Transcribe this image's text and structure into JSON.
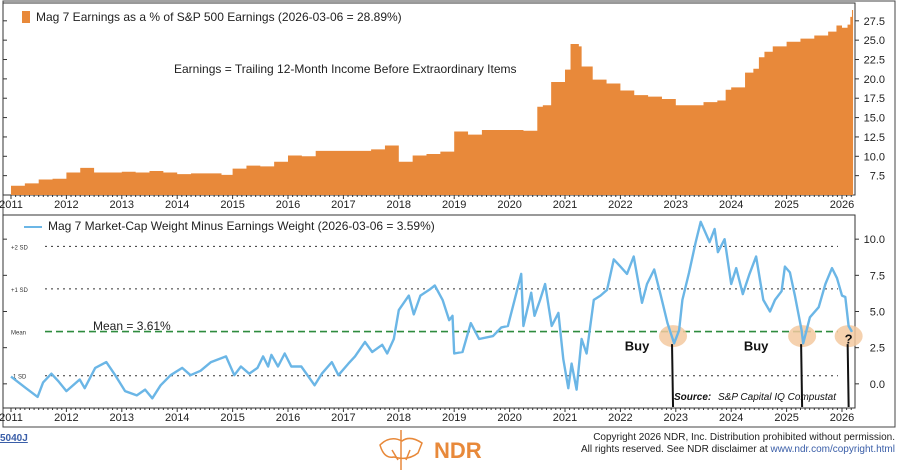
{
  "chart_data": [
    {
      "type": "area",
      "title": "Mag 7 Earnings as a % of S&P 500 Earnings (2026-03-06 = 28.89%)",
      "annotation": "Earnings = Trailing 12-Month Income Before Extraordinary Items",
      "color": "#e8893a",
      "xlim": [
        2011,
        2026.3
      ],
      "ylim": [
        5,
        29.8
      ],
      "xticks": [
        "2011",
        "2012",
        "2013",
        "2014",
        "2015",
        "2016",
        "2017",
        "2018",
        "2019",
        "2020",
        "2021",
        "2022",
        "2023",
        "2024",
        "2025",
        "2026"
      ],
      "yticks": [
        "7.5",
        "10.0",
        "12.5",
        "15.0",
        "17.5",
        "20.0",
        "22.5",
        "25.0",
        "27.5"
      ],
      "points": [
        [
          2011.0,
          6.2
        ],
        [
          2011.25,
          6.5
        ],
        [
          2011.5,
          7.0
        ],
        [
          2011.75,
          7.1
        ],
        [
          2012.0,
          7.9
        ],
        [
          2012.25,
          8.5
        ],
        [
          2012.5,
          7.9
        ],
        [
          2012.75,
          7.9
        ],
        [
          2013.0,
          8.0
        ],
        [
          2013.25,
          7.9
        ],
        [
          2013.5,
          8.1
        ],
        [
          2013.75,
          7.9
        ],
        [
          2014.0,
          7.7
        ],
        [
          2014.25,
          7.8
        ],
        [
          2014.8,
          7.6
        ],
        [
          2015.0,
          8.4
        ],
        [
          2015.25,
          8.8
        ],
        [
          2015.5,
          8.7
        ],
        [
          2015.75,
          9.3
        ],
        [
          2016.0,
          10.1
        ],
        [
          2016.25,
          10.0
        ],
        [
          2016.5,
          10.7
        ],
        [
          2017.5,
          10.9
        ],
        [
          2017.75,
          11.4
        ],
        [
          2018.0,
          9.3
        ],
        [
          2018.25,
          10.1
        ],
        [
          2018.5,
          10.3
        ],
        [
          2018.75,
          10.6
        ],
        [
          2019.0,
          13.2
        ],
        [
          2019.25,
          12.8
        ],
        [
          2019.5,
          13.4
        ],
        [
          2020.25,
          13.3
        ],
        [
          2020.5,
          16.4
        ],
        [
          2020.6,
          16.6
        ],
        [
          2020.75,
          19.6
        ],
        [
          2021.0,
          21.2
        ],
        [
          2021.1,
          24.5
        ],
        [
          2021.25,
          24.2
        ],
        [
          2021.3,
          21.6
        ],
        [
          2021.5,
          19.9
        ],
        [
          2021.75,
          19.4
        ],
        [
          2022.0,
          18.5
        ],
        [
          2022.25,
          17.9
        ],
        [
          2022.5,
          17.7
        ],
        [
          2022.75,
          17.4
        ],
        [
          2023.0,
          16.6
        ],
        [
          2023.5,
          17.0
        ],
        [
          2023.75,
          17.2
        ],
        [
          2023.9,
          18.6
        ],
        [
          2024.0,
          18.9
        ],
        [
          2024.25,
          20.8
        ],
        [
          2024.4,
          21.3
        ],
        [
          2024.5,
          22.8
        ],
        [
          2024.6,
          23.5
        ],
        [
          2024.75,
          24.2
        ],
        [
          2025.0,
          24.8
        ],
        [
          2025.25,
          25.2
        ],
        [
          2025.5,
          25.6
        ],
        [
          2025.75,
          26.1
        ],
        [
          2025.9,
          26.9
        ],
        [
          2026.0,
          26.6
        ],
        [
          2026.1,
          27.0
        ],
        [
          2026.15,
          28.0
        ],
        [
          2026.18,
          28.89
        ],
        [
          2026.2,
          28.89
        ]
      ]
    },
    {
      "type": "line",
      "title": "Mag 7 Market-Cap Weight Minus Earnings Weight (2026-03-06 = 3.59%)",
      "color": "#6bb6e6",
      "xlim": [
        2011,
        2026.3
      ],
      "ylim": [
        -1.67,
        11.67
      ],
      "xticks": [
        "2011",
        "2012",
        "2013",
        "2014",
        "2015",
        "2016",
        "2017",
        "2018",
        "2019",
        "2020",
        "2021",
        "2022",
        "2023",
        "2024",
        "2025",
        "2026"
      ],
      "yticks": [
        "0.0",
        "2.5",
        "5.0",
        "7.5",
        "10.0"
      ],
      "reference_lines": [
        {
          "label": "+2 SD",
          "value": 9.5
        },
        {
          "label": "+1 SD",
          "value": 6.56
        },
        {
          "label": "Mean",
          "value": 3.61
        },
        {
          "label": "-1 SD",
          "value": 0.56
        }
      ],
      "mean_label": "Mean = 3.61%",
      "annotations": [
        {
          "text": "Buy",
          "x": 2022.3,
          "y": 2.3
        },
        {
          "text": "Buy",
          "x": 2024.45,
          "y": 2.3
        },
        {
          "text": "?",
          "x": 2026.12,
          "y": 2.8
        }
      ],
      "highlights": [
        {
          "x": 2022.95,
          "y": 3.3
        },
        {
          "x": 2025.28,
          "y": 3.3
        },
        {
          "x": 2026.12,
          "y": 3.3
        }
      ],
      "source_label": "Source:",
      "source": "S&P Capital IQ Compustat",
      "points": [
        [
          2011.0,
          0.5
        ],
        [
          2011.27,
          -0.3
        ],
        [
          2011.48,
          -0.9
        ],
        [
          2011.58,
          0.1
        ],
        [
          2011.73,
          0.7
        ],
        [
          2011.85,
          0.2
        ],
        [
          2012.0,
          -0.5
        ],
        [
          2012.24,
          0.3
        ],
        [
          2012.33,
          -0.3
        ],
        [
          2012.52,
          1.1
        ],
        [
          2012.72,
          1.5
        ],
        [
          2012.88,
          0.6
        ],
        [
          2013.06,
          -0.5
        ],
        [
          2013.27,
          -0.8
        ],
        [
          2013.42,
          -0.4
        ],
        [
          2013.55,
          -1.0
        ],
        [
          2013.7,
          -0.1
        ],
        [
          2013.88,
          0.6
        ],
        [
          2014.09,
          1.1
        ],
        [
          2014.24,
          0.6
        ],
        [
          2014.42,
          0.9
        ],
        [
          2014.61,
          1.5
        ],
        [
          2014.88,
          1.9
        ],
        [
          2015.03,
          0.6
        ],
        [
          2015.15,
          1.2
        ],
        [
          2015.3,
          0.7
        ],
        [
          2015.45,
          1.1
        ],
        [
          2015.55,
          1.9
        ],
        [
          2015.64,
          1.2
        ],
        [
          2015.7,
          2.0
        ],
        [
          2015.82,
          1.2
        ],
        [
          2015.94,
          2.1
        ],
        [
          2016.06,
          1.2
        ],
        [
          2016.24,
          1.2
        ],
        [
          2016.48,
          -0.1
        ],
        [
          2016.61,
          0.7
        ],
        [
          2016.79,
          1.5
        ],
        [
          2016.91,
          0.6
        ],
        [
          2017.09,
          1.4
        ],
        [
          2017.21,
          1.9
        ],
        [
          2017.39,
          2.9
        ],
        [
          2017.52,
          2.2
        ],
        [
          2017.7,
          2.7
        ],
        [
          2017.79,
          2.1
        ],
        [
          2017.91,
          3.1
        ],
        [
          2018.0,
          5.1
        ],
        [
          2018.18,
          6.1
        ],
        [
          2018.27,
          4.8
        ],
        [
          2018.39,
          6.1
        ],
        [
          2018.55,
          6.5
        ],
        [
          2018.65,
          6.8
        ],
        [
          2018.79,
          5.8
        ],
        [
          2018.91,
          4.4
        ],
        [
          2018.97,
          4.7
        ],
        [
          2019.0,
          2.1
        ],
        [
          2019.15,
          2.2
        ],
        [
          2019.3,
          4.2
        ],
        [
          2019.45,
          3.1
        ],
        [
          2019.7,
          3.3
        ],
        [
          2019.85,
          3.9
        ],
        [
          2019.97,
          4.0
        ],
        [
          2020.09,
          5.8
        ],
        [
          2020.21,
          7.6
        ],
        [
          2020.25,
          4.0
        ],
        [
          2020.39,
          6.3
        ],
        [
          2020.45,
          4.7
        ],
        [
          2020.55,
          5.8
        ],
        [
          2020.64,
          6.9
        ],
        [
          2020.76,
          4.0
        ],
        [
          2020.88,
          4.9
        ],
        [
          2020.97,
          1.7
        ],
        [
          2021.06,
          -0.3
        ],
        [
          2021.12,
          1.4
        ],
        [
          2021.21,
          -0.4
        ],
        [
          2021.3,
          3.1
        ],
        [
          2021.39,
          2.1
        ],
        [
          2021.52,
          5.8
        ],
        [
          2021.64,
          6.1
        ],
        [
          2021.76,
          6.5
        ],
        [
          2021.88,
          8.6
        ],
        [
          2022.0,
          8.1
        ],
        [
          2022.12,
          7.6
        ],
        [
          2022.24,
          8.8
        ],
        [
          2022.39,
          5.6
        ],
        [
          2022.48,
          6.9
        ],
        [
          2022.61,
          7.9
        ],
        [
          2022.73,
          6.1
        ],
        [
          2022.85,
          4.2
        ],
        [
          2022.97,
          2.8
        ],
        [
          2023.06,
          3.7
        ],
        [
          2023.12,
          5.8
        ],
        [
          2023.24,
          7.7
        ],
        [
          2023.36,
          9.8
        ],
        [
          2023.45,
          11.2
        ],
        [
          2023.61,
          9.8
        ],
        [
          2023.7,
          10.7
        ],
        [
          2023.76,
          9.1
        ],
        [
          2023.88,
          10.0
        ],
        [
          2024.0,
          6.9
        ],
        [
          2024.09,
          8.0
        ],
        [
          2024.21,
          6.2
        ],
        [
          2024.33,
          7.6
        ],
        [
          2024.45,
          8.8
        ],
        [
          2024.58,
          5.8
        ],
        [
          2024.7,
          5.0
        ],
        [
          2024.79,
          5.8
        ],
        [
          2024.91,
          6.4
        ],
        [
          2024.97,
          8.1
        ],
        [
          2025.06,
          7.7
        ],
        [
          2025.15,
          6.1
        ],
        [
          2025.27,
          3.7
        ],
        [
          2025.3,
          2.8
        ],
        [
          2025.42,
          4.6
        ],
        [
          2025.58,
          5.3
        ],
        [
          2025.7,
          6.9
        ],
        [
          2025.82,
          8.0
        ],
        [
          2025.91,
          7.3
        ],
        [
          2026.0,
          6.1
        ],
        [
          2026.06,
          6.0
        ],
        [
          2026.12,
          4.0
        ],
        [
          2026.18,
          3.59
        ]
      ]
    }
  ],
  "footer": {
    "chart_id": "5040J",
    "logo": "NDR",
    "copyright_line1": "Copyright 2026 NDR, Inc. Distribution prohibited without permission.",
    "copyright_line2_prefix": "All rights reserved. See NDR disclaimer at ",
    "copyright_link": "www.ndr.com/copyright.html"
  },
  "colors": {
    "bar": "#e8893a",
    "line": "#6bb6e6",
    "mean": "#2e8b3e",
    "highlight": "#f3c9a0",
    "logo": "#e8893a",
    "link": "#3a5ea8"
  }
}
